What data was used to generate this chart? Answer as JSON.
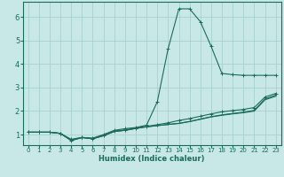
{
  "xlabel": "Humidex (Indice chaleur)",
  "bg_color": "#c8e8e8",
  "grid_color": "#a8d0d0",
  "line_color": "#1a6b5a",
  "xlim": [
    -0.5,
    23.5
  ],
  "ylim": [
    0.55,
    6.65
  ],
  "xticks": [
    0,
    1,
    2,
    3,
    4,
    5,
    6,
    7,
    8,
    9,
    10,
    11,
    12,
    13,
    14,
    15,
    16,
    17,
    18,
    19,
    20,
    21,
    22,
    23
  ],
  "yticks": [
    1,
    2,
    3,
    4,
    5,
    6
  ],
  "line_peak": [
    1.1,
    1.1,
    1.1,
    1.05,
    0.8,
    0.88,
    0.85,
    1.0,
    1.18,
    1.25,
    1.3,
    1.4,
    2.4,
    4.65,
    6.35,
    6.35,
    5.8,
    4.75,
    3.6,
    3.55,
    3.52,
    3.52,
    3.52,
    3.52
  ],
  "line_top": [
    1.1,
    1.1,
    1.1,
    1.05,
    0.75,
    0.88,
    0.83,
    0.97,
    1.15,
    1.2,
    1.28,
    1.35,
    1.42,
    1.5,
    1.6,
    1.68,
    1.78,
    1.88,
    1.97,
    2.02,
    2.07,
    2.15,
    2.6,
    2.75
  ],
  "line_mid": [
    1.1,
    1.1,
    1.1,
    1.05,
    0.75,
    0.87,
    0.82,
    0.95,
    1.13,
    1.18,
    1.26,
    1.33,
    1.38,
    1.43,
    1.48,
    1.56,
    1.66,
    1.76,
    1.84,
    1.9,
    1.95,
    2.03,
    2.52,
    2.68
  ],
  "line_bot": [
    1.1,
    1.1,
    1.1,
    1.05,
    0.75,
    0.87,
    0.82,
    0.95,
    1.13,
    1.18,
    1.26,
    1.33,
    1.38,
    1.43,
    1.47,
    1.55,
    1.65,
    1.75,
    1.82,
    1.88,
    1.93,
    2.0,
    2.48,
    2.63
  ]
}
